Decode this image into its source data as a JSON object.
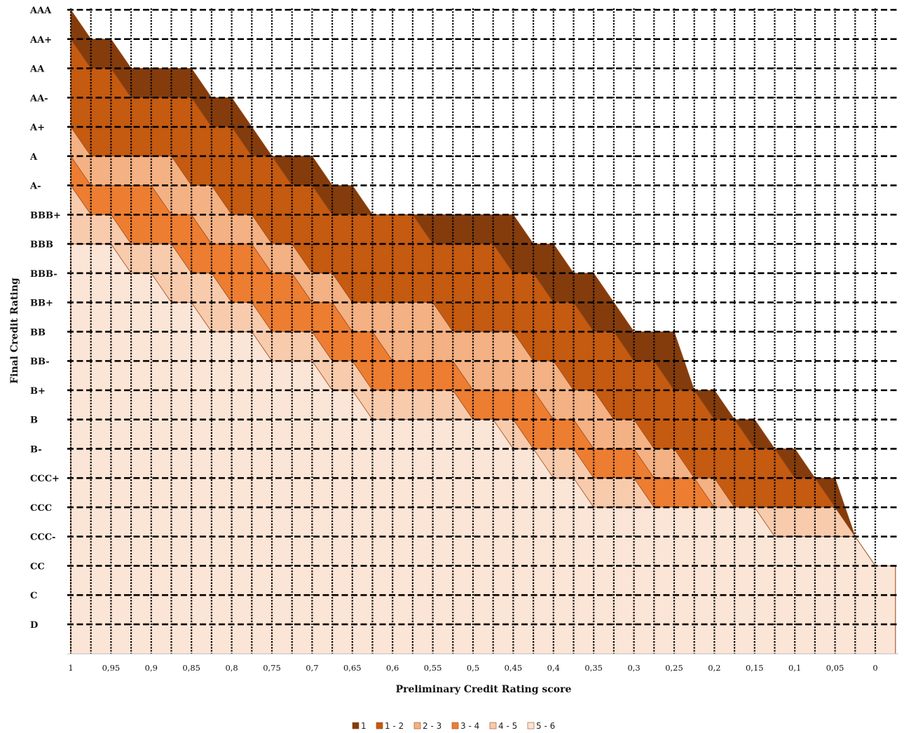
{
  "chart_data": {
    "type": "area",
    "xlabel": "Preliminary Credit Rating score",
    "ylabel": "Final Credit Rating",
    "x_ticks": [
      "1",
      "0,95",
      "0,9",
      "0,85",
      "0,8",
      "0,75",
      "0,7",
      "0,65",
      "0,6",
      "0,55",
      "0,5",
      "0,45",
      "0,4",
      "0,35",
      "0,3",
      "0,25",
      "0,2",
      "0,15",
      "0,1",
      "0,05",
      "0"
    ],
    "y_ticks": [
      "AAA",
      "AA+",
      "AA",
      "AA-",
      "A+",
      "A",
      "A-",
      "BBB+",
      "BBB",
      "BBB-",
      "BB+",
      "BB",
      "BB-",
      "B+",
      "B",
      "B-",
      "CCC+",
      "CCC",
      "CCC-",
      "CC",
      "C",
      "D"
    ],
    "grid": true,
    "legend_position": "bottom",
    "x": [
      1.0,
      0.975,
      0.95,
      0.925,
      0.9,
      0.875,
      0.85,
      0.825,
      0.8,
      0.775,
      0.75,
      0.725,
      0.7,
      0.675,
      0.65,
      0.625,
      0.6,
      0.575,
      0.55,
      0.525,
      0.5,
      0.475,
      0.45,
      0.425,
      0.4,
      0.375,
      0.35,
      0.325,
      0.3,
      0.275,
      0.25,
      0.225,
      0.2,
      0.175,
      0.15,
      0.125,
      0.1,
      0.075,
      0.05,
      0.025,
      0.0,
      -0.025
    ],
    "y_unit": "rating notches from D (D = 0, AAA = 21)",
    "series": [
      {
        "name": "1",
        "color": "#843c0c",
        "values": [
          21.0,
          20.0,
          20.0,
          19.0,
          19.0,
          19.0,
          19.0,
          18.0,
          18.0,
          17.0,
          16.0,
          16.0,
          16.0,
          15.0,
          15.0,
          14.0,
          14.0,
          14.0,
          14.0,
          14.0,
          14.0,
          14.0,
          14.0,
          13.0,
          13.0,
          12.0,
          12.0,
          11.0,
          10.0,
          10.0,
          10.0,
          8.0,
          8.0,
          7.0,
          7.0,
          6.0,
          6.0,
          5.0,
          5.0,
          3.0,
          2.0,
          2.0
        ]
      },
      {
        "name": "1 - 2",
        "color": "#c55a11",
        "values": [
          20.0,
          19.0,
          19.0,
          18.0,
          18.0,
          18.0,
          18.0,
          17.0,
          17.0,
          16.0,
          16.0,
          15.0,
          15.0,
          14.0,
          14.0,
          14.0,
          14.0,
          14.0,
          13.0,
          13.0,
          13.0,
          13.0,
          12.0,
          12.0,
          11.0,
          11.0,
          10.0,
          10.0,
          9.0,
          9.0,
          8.0,
          8.0,
          7.0,
          7.0,
          6.0,
          6.0,
          5.0,
          5.0,
          4.0,
          3.0,
          2.0,
          2.0
        ]
      },
      {
        "name": "2 - 3",
        "color": "#f4b183",
        "values": [
          17.0,
          16.0,
          16.0,
          16.0,
          16.0,
          16.0,
          15.0,
          15.0,
          14.0,
          14.0,
          13.0,
          13.0,
          12.0,
          12.0,
          11.0,
          11.0,
          11.0,
          11.0,
          11.0,
          10.0,
          10.0,
          10.0,
          10.0,
          9.0,
          9.0,
          8.0,
          8.0,
          7.0,
          7.0,
          6.0,
          6.0,
          5.0,
          5.0,
          4.0,
          4.0,
          4.0,
          4.0,
          4.0,
          4.0,
          3.0,
          2.0,
          2.0
        ]
      },
      {
        "name": "3 - 4",
        "color": "#ed7d31",
        "values": [
          16.0,
          15.0,
          15.0,
          15.0,
          15.0,
          14.0,
          14.0,
          13.0,
          13.0,
          13.0,
          12.0,
          12.0,
          11.0,
          11.0,
          10.0,
          10.0,
          9.0,
          9.0,
          9.0,
          9.0,
          8.0,
          8.0,
          8.0,
          8.0,
          7.0,
          7.0,
          6.0,
          6.0,
          6.0,
          5.0,
          5.0,
          5.0,
          4.0,
          4.0,
          4.0,
          4.0,
          4.0,
          4.0,
          4.0,
          3.0,
          2.0,
          2.0
        ]
      },
      {
        "name": "4 - 5",
        "color": "#f8cbad",
        "values": [
          15.0,
          14.0,
          14.0,
          13.0,
          13.0,
          13.0,
          12.0,
          12.0,
          11.0,
          11.0,
          10.0,
          10.0,
          10.0,
          9.0,
          9.0,
          8.0,
          8.0,
          8.0,
          8.0,
          8.0,
          7.0,
          7.0,
          7.0,
          6.0,
          6.0,
          6.0,
          5.0,
          5.0,
          5.0,
          4.0,
          4.0,
          4.0,
          4.0,
          4.0,
          4.0,
          4.0,
          4.0,
          4.0,
          4.0,
          3.0,
          2.0,
          2.0
        ]
      },
      {
        "name": "5 - 6",
        "color": "#fbe5d6",
        "values": [
          13.0,
          13.0,
          13.0,
          12.0,
          12.0,
          11.0,
          11.0,
          10.0,
          10.0,
          10.0,
          9.0,
          9.0,
          9.0,
          8.0,
          8.0,
          7.0,
          7.0,
          7.0,
          7.0,
          7.0,
          7.0,
          7.0,
          6.0,
          6.0,
          5.0,
          5.0,
          4.0,
          4.0,
          4.0,
          4.0,
          4.0,
          4.0,
          4.0,
          4.0,
          4.0,
          3.0,
          3.0,
          3.0,
          3.0,
          3.0,
          2.0,
          2.0
        ]
      }
    ]
  }
}
